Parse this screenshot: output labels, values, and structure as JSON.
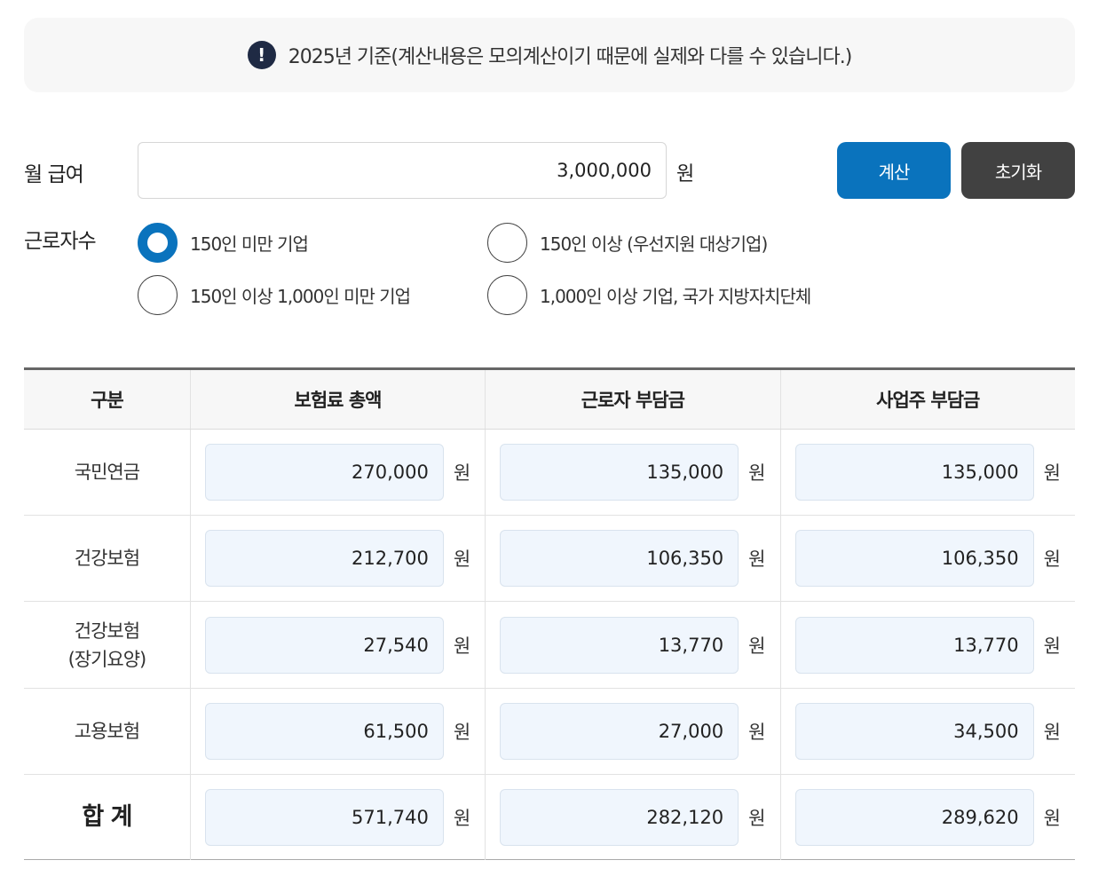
{
  "notice": {
    "icon": "exclamation-icon",
    "text": "2025년 기준(계산내용은 모의계산이기 때문에 실제와 다를 수 있습니다.)"
  },
  "salary": {
    "label": "월 급여",
    "value": "3,000,000",
    "unit": "원"
  },
  "buttons": {
    "calculate": "계산",
    "reset": "초기화"
  },
  "workers": {
    "label": "근로자수",
    "options": [
      {
        "label": "150인 미만 기업",
        "checked": true
      },
      {
        "label": "150인 이상 (우선지원 대상기업)",
        "checked": false
      },
      {
        "label": "150인 이상 1,000인 미만 기업",
        "checked": false
      },
      {
        "label": "1,000인 이상 기업, 국가 지방자치단체",
        "checked": false
      }
    ]
  },
  "table": {
    "headers": [
      "구분",
      "보험료 총액",
      "근로자 부담금",
      "사업주 부담금"
    ],
    "unit": "원",
    "rows": [
      {
        "category": "국민연금",
        "total": "270,000",
        "worker": "135,000",
        "employer": "135,000"
      },
      {
        "category": "건강보험",
        "total": "212,700",
        "worker": "106,350",
        "employer": "106,350"
      },
      {
        "category": "건강보험\n(장기요양)",
        "total": "27,540",
        "worker": "13,770",
        "employer": "13,770"
      },
      {
        "category": "고용보험",
        "total": "61,500",
        "worker": "27,000",
        "employer": "34,500"
      },
      {
        "category": "합 계",
        "total": "571,740",
        "worker": "282,120",
        "employer": "289,620"
      }
    ]
  }
}
